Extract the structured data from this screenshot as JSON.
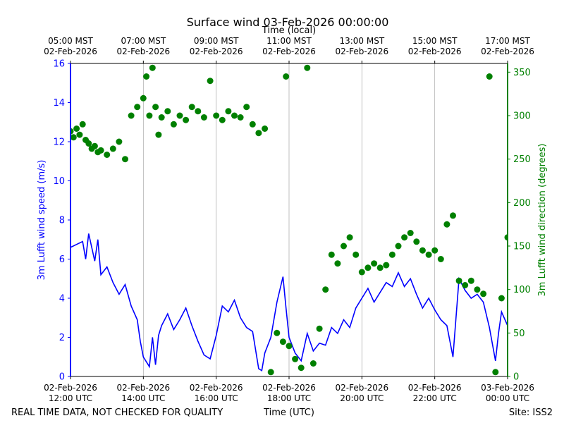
{
  "chart_data": {
    "type": "scatter",
    "title": "Surface wind 03-Feb-2026 00:00:00",
    "xlabel": "Time (UTC)",
    "x2label": "Time (local)",
    "ylabel": "3m Lufft wind speed (m/s)",
    "y2label": "3m Lufft wind direction (degrees)",
    "xlim": [
      "2026-02-02 12:00",
      "2026-02-03 00:00"
    ],
    "ylim": [
      0,
      16
    ],
    "y2lim": [
      0,
      360
    ],
    "grid": "vertical",
    "colors": {
      "speed": "#0000ff",
      "direction": "#008000"
    },
    "x_ticks": [
      {
        "line1": "02-Feb-2026",
        "line2": "12:00 UTC"
      },
      {
        "line1": "02-Feb-2026",
        "line2": "14:00 UTC"
      },
      {
        "line1": "02-Feb-2026",
        "line2": "16:00 UTC"
      },
      {
        "line1": "02-Feb-2026",
        "line2": "18:00 UTC"
      },
      {
        "line1": "02-Feb-2026",
        "line2": "20:00 UTC"
      },
      {
        "line1": "02-Feb-2026",
        "line2": "22:00 UTC"
      },
      {
        "line1": "03-Feb-2026",
        "line2": "00:00 UTC"
      }
    ],
    "x2_ticks": [
      {
        "line1": "05:00 MST",
        "line2": "02-Feb-2026"
      },
      {
        "line1": "07:00 MST",
        "line2": "02-Feb-2026"
      },
      {
        "line1": "09:00 MST",
        "line2": "02-Feb-2026"
      },
      {
        "line1": "11:00 MST",
        "line2": "02-Feb-2026"
      },
      {
        "line1": "13:00 MST",
        "line2": "02-Feb-2026"
      },
      {
        "line1": "15:00 MST",
        "line2": "02-Feb-2026"
      },
      {
        "line1": "17:00 MST",
        "line2": "02-Feb-2026"
      }
    ],
    "y_ticks": [
      "0",
      "2",
      "4",
      "6",
      "8",
      "10",
      "12",
      "14",
      "16"
    ],
    "y2_ticks": [
      "0",
      "50",
      "100",
      "150",
      "200",
      "250",
      "300",
      "350"
    ],
    "series": [
      {
        "kind": "line",
        "axis": "left",
        "points": [
          [
            "2026-02-02 12:00",
            6.6
          ],
          [
            "2026-02-02 12:20",
            6.9
          ],
          [
            "2026-02-02 12:25",
            6.0
          ],
          [
            "2026-02-02 12:30",
            7.3
          ],
          [
            "2026-02-02 12:40",
            5.9
          ],
          [
            "2026-02-02 12:45",
            7.0
          ],
          [
            "2026-02-02 12:50",
            5.2
          ],
          [
            "2026-02-02 13:00",
            5.6
          ],
          [
            "2026-02-02 13:10",
            4.8
          ],
          [
            "2026-02-02 13:20",
            4.2
          ],
          [
            "2026-02-02 13:30",
            4.7
          ],
          [
            "2026-02-02 13:40",
            3.6
          ],
          [
            "2026-02-02 13:50",
            2.9
          ],
          [
            "2026-02-02 13:55",
            1.8
          ],
          [
            "2026-02-02 14:00",
            1.0
          ],
          [
            "2026-02-02 14:10",
            0.5
          ],
          [
            "2026-02-02 14:15",
            2.0
          ],
          [
            "2026-02-02 14:20",
            0.6
          ],
          [
            "2026-02-02 14:25",
            2.1
          ],
          [
            "2026-02-02 14:30",
            2.6
          ],
          [
            "2026-02-02 14:40",
            3.2
          ],
          [
            "2026-02-02 14:50",
            2.4
          ],
          [
            "2026-02-02 15:00",
            2.9
          ],
          [
            "2026-02-02 15:10",
            3.5
          ],
          [
            "2026-02-02 15:20",
            2.6
          ],
          [
            "2026-02-02 15:30",
            1.8
          ],
          [
            "2026-02-02 15:40",
            1.1
          ],
          [
            "2026-02-02 15:50",
            0.9
          ],
          [
            "2026-02-02 16:00",
            2.1
          ],
          [
            "2026-02-02 16:10",
            3.6
          ],
          [
            "2026-02-02 16:20",
            3.3
          ],
          [
            "2026-02-02 16:30",
            3.9
          ],
          [
            "2026-02-02 16:40",
            3.0
          ],
          [
            "2026-02-02 16:50",
            2.5
          ],
          [
            "2026-02-02 17:00",
            2.3
          ],
          [
            "2026-02-02 17:10",
            0.4
          ],
          [
            "2026-02-02 17:15",
            0.3
          ],
          [
            "2026-02-02 17:20",
            1.2
          ],
          [
            "2026-02-02 17:30",
            2.0
          ],
          [
            "2026-02-02 17:40",
            3.8
          ],
          [
            "2026-02-02 17:50",
            5.1
          ],
          [
            "2026-02-02 17:55",
            3.5
          ],
          [
            "2026-02-02 18:00",
            2.0
          ],
          [
            "2026-02-02 18:10",
            1.2
          ],
          [
            "2026-02-02 18:20",
            0.8
          ],
          [
            "2026-02-02 18:30",
            2.2
          ],
          [
            "2026-02-02 18:40",
            1.3
          ],
          [
            "2026-02-02 18:50",
            1.7
          ],
          [
            "2026-02-02 19:00",
            1.6
          ],
          [
            "2026-02-02 19:10",
            2.5
          ],
          [
            "2026-02-02 19:20",
            2.2
          ],
          [
            "2026-02-02 19:30",
            2.9
          ],
          [
            "2026-02-02 19:40",
            2.5
          ],
          [
            "2026-02-02 19:50",
            3.5
          ],
          [
            "2026-02-02 20:00",
            4.0
          ],
          [
            "2026-02-02 20:10",
            4.5
          ],
          [
            "2026-02-02 20:20",
            3.8
          ],
          [
            "2026-02-02 20:30",
            4.3
          ],
          [
            "2026-02-02 20:40",
            4.8
          ],
          [
            "2026-02-02 20:50",
            4.6
          ],
          [
            "2026-02-02 21:00",
            5.3
          ],
          [
            "2026-02-02 21:10",
            4.6
          ],
          [
            "2026-02-02 21:20",
            5.0
          ],
          [
            "2026-02-02 21:30",
            4.2
          ],
          [
            "2026-02-02 21:40",
            3.5
          ],
          [
            "2026-02-02 21:50",
            4.0
          ],
          [
            "2026-02-02 22:00",
            3.4
          ],
          [
            "2026-02-02 22:10",
            2.9
          ],
          [
            "2026-02-02 22:20",
            2.6
          ],
          [
            "2026-02-02 22:30",
            1.0
          ],
          [
            "2026-02-02 22:40",
            5.0
          ],
          [
            "2026-02-02 22:50",
            4.4
          ],
          [
            "2026-02-02 23:00",
            4.0
          ],
          [
            "2026-02-02 23:10",
            4.2
          ],
          [
            "2026-02-02 23:20",
            3.8
          ],
          [
            "2026-02-02 23:30",
            2.5
          ],
          [
            "2026-02-02 23:40",
            0.8
          ],
          [
            "2026-02-02 23:45",
            2.2
          ],
          [
            "2026-02-02 23:50",
            3.3
          ],
          [
            "2026-02-03 00:00",
            2.6
          ]
        ]
      },
      {
        "kind": "points",
        "axis": "right",
        "points": [
          [
            "2026-02-02 12:00",
            282
          ],
          [
            "2026-02-02 12:05",
            275
          ],
          [
            "2026-02-02 12:10",
            285
          ],
          [
            "2026-02-02 12:15",
            278
          ],
          [
            "2026-02-02 12:20",
            290
          ],
          [
            "2026-02-02 12:25",
            272
          ],
          [
            "2026-02-02 12:30",
            268
          ],
          [
            "2026-02-02 12:35",
            262
          ],
          [
            "2026-02-02 12:40",
            265
          ],
          [
            "2026-02-02 12:45",
            258
          ],
          [
            "2026-02-02 12:50",
            260
          ],
          [
            "2026-02-02 13:00",
            255
          ],
          [
            "2026-02-02 13:10",
            262
          ],
          [
            "2026-02-02 13:20",
            270
          ],
          [
            "2026-02-02 13:30",
            250
          ],
          [
            "2026-02-02 13:40",
            300
          ],
          [
            "2026-02-02 13:50",
            310
          ],
          [
            "2026-02-02 14:00",
            320
          ],
          [
            "2026-02-02 14:05",
            345
          ],
          [
            "2026-02-02 14:10",
            300
          ],
          [
            "2026-02-02 14:15",
            355
          ],
          [
            "2026-02-02 14:20",
            310
          ],
          [
            "2026-02-02 14:25",
            278
          ],
          [
            "2026-02-02 14:30",
            298
          ],
          [
            "2026-02-02 14:40",
            305
          ],
          [
            "2026-02-02 14:50",
            290
          ],
          [
            "2026-02-02 15:00",
            300
          ],
          [
            "2026-02-02 15:10",
            295
          ],
          [
            "2026-02-02 15:20",
            310
          ],
          [
            "2026-02-02 15:30",
            305
          ],
          [
            "2026-02-02 15:40",
            298
          ],
          [
            "2026-02-02 15:50",
            340
          ],
          [
            "2026-02-02 16:00",
            300
          ],
          [
            "2026-02-02 16:10",
            295
          ],
          [
            "2026-02-02 16:20",
            305
          ],
          [
            "2026-02-02 16:30",
            300
          ],
          [
            "2026-02-02 16:40",
            298
          ],
          [
            "2026-02-02 16:50",
            310
          ],
          [
            "2026-02-02 17:00",
            290
          ],
          [
            "2026-02-02 17:10",
            280
          ],
          [
            "2026-02-02 17:20",
            285
          ],
          [
            "2026-02-02 17:30",
            5
          ],
          [
            "2026-02-02 17:40",
            50
          ],
          [
            "2026-02-02 17:50",
            40
          ],
          [
            "2026-02-02 17:55",
            345
          ],
          [
            "2026-02-02 18:00",
            35
          ],
          [
            "2026-02-02 18:10",
            20
          ],
          [
            "2026-02-02 18:20",
            10
          ],
          [
            "2026-02-02 18:30",
            355
          ],
          [
            "2026-02-02 18:40",
            15
          ],
          [
            "2026-02-02 18:50",
            55
          ],
          [
            "2026-02-02 19:00",
            100
          ],
          [
            "2026-02-02 19:10",
            140
          ],
          [
            "2026-02-02 19:20",
            130
          ],
          [
            "2026-02-02 19:30",
            150
          ],
          [
            "2026-02-02 19:40",
            160
          ],
          [
            "2026-02-02 19:50",
            140
          ],
          [
            "2026-02-02 20:00",
            120
          ],
          [
            "2026-02-02 20:10",
            125
          ],
          [
            "2026-02-02 20:20",
            130
          ],
          [
            "2026-02-02 20:30",
            125
          ],
          [
            "2026-02-02 20:40",
            128
          ],
          [
            "2026-02-02 20:50",
            140
          ],
          [
            "2026-02-02 21:00",
            150
          ],
          [
            "2026-02-02 21:10",
            160
          ],
          [
            "2026-02-02 21:20",
            165
          ],
          [
            "2026-02-02 21:30",
            155
          ],
          [
            "2026-02-02 21:40",
            145
          ],
          [
            "2026-02-02 21:50",
            140
          ],
          [
            "2026-02-02 22:00",
            145
          ],
          [
            "2026-02-02 22:10",
            135
          ],
          [
            "2026-02-02 22:20",
            175
          ],
          [
            "2026-02-02 22:30",
            185
          ],
          [
            "2026-02-02 22:40",
            110
          ],
          [
            "2026-02-02 22:50",
            105
          ],
          [
            "2026-02-02 23:00",
            110
          ],
          [
            "2026-02-02 23:10",
            100
          ],
          [
            "2026-02-02 23:20",
            95
          ],
          [
            "2026-02-02 23:30",
            345
          ],
          [
            "2026-02-02 23:40",
            5
          ],
          [
            "2026-02-02 23:50",
            90
          ],
          [
            "2026-02-03 00:00",
            160
          ]
        ]
      }
    ]
  },
  "footer": {
    "left": "REAL TIME DATA, NOT CHECKED FOR QUALITY",
    "right": "Site: ISS2"
  }
}
